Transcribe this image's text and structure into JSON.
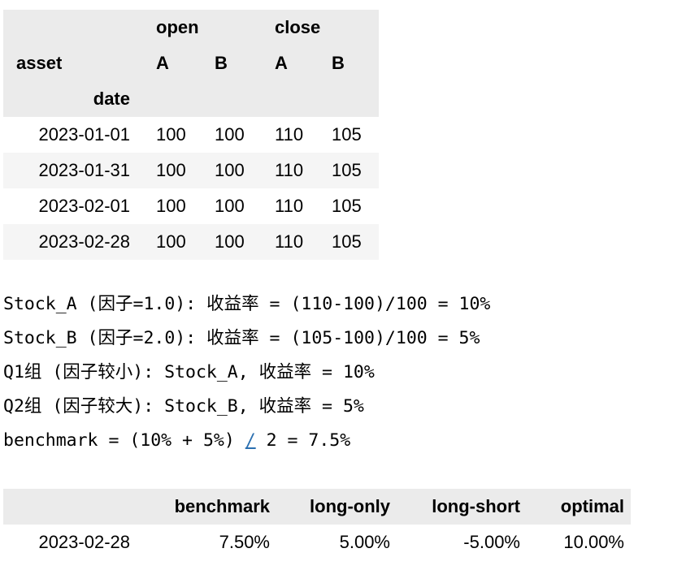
{
  "prices_table": {
    "column_level_0": [
      "open",
      "close"
    ],
    "column_level_1_name": "asset",
    "column_level_1": [
      "A",
      "B",
      "A",
      "B"
    ],
    "index_name": "date",
    "rows": [
      {
        "date": "2023-01-01",
        "values": [
          "100",
          "100",
          "110",
          "105"
        ]
      },
      {
        "date": "2023-01-31",
        "values": [
          "100",
          "100",
          "110",
          "105"
        ]
      },
      {
        "date": "2023-02-01",
        "values": [
          "100",
          "100",
          "110",
          "105"
        ]
      },
      {
        "date": "2023-02-28",
        "values": [
          "100",
          "100",
          "110",
          "105"
        ]
      }
    ]
  },
  "stdout": {
    "line1": "Stock_A (因子=1.0): 收益率 = (110-100)/100 = 10%",
    "line2": "Stock_B (因子=2.0): 收益率 = (105-100)/100 = 5%",
    "line3": "Q1组 (因子较小): Stock_A, 收益率 = 10%",
    "line4": "Q2组 (因子较大): Stock_B, 收益率 = 5%",
    "line5_before": "benchmark = (10% + 5%) ",
    "line5_op": "/",
    "line5_after": " 2 = 7.5%"
  },
  "returns_table": {
    "columns": [
      "benchmark",
      "long-only",
      "long-short",
      "optimal"
    ],
    "rows": [
      {
        "index": "2023-02-28",
        "values": [
          "7.50%",
          "5.00%",
          "-5.00%",
          "10.00%"
        ]
      }
    ]
  }
}
